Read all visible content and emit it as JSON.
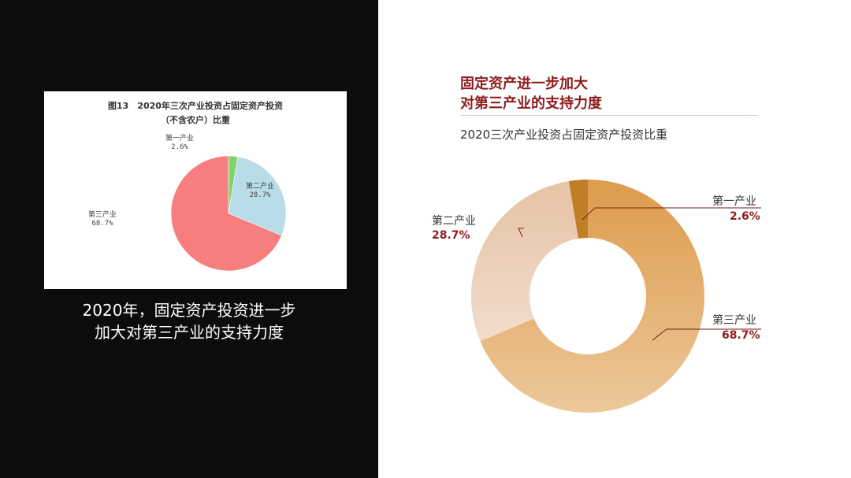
{
  "left": {
    "figure_title_line1": "图13　2020年三次产业投资占固定资产投资",
    "figure_title_line2": "（不含农户）比重",
    "caption_line1": "2020年，固定资产投资进一步",
    "caption_line2": "加大对第三产业的支持力度"
  },
  "right": {
    "title_line1": "固定资产进一步加大",
    "title_line2": "对第三产业的支持力度",
    "subtitle": "2020三次产业投资占固定资产投资比重"
  },
  "colors": {
    "left_bg": "#0c0c0c",
    "title_red": "#8e1d1d",
    "pie_primary": "#7fd36b",
    "pie_secondary": "#b9dde8",
    "pie_tertiary": "#f77e7e",
    "donut_primary": "#c07f26",
    "donut_secondary_light": "#f1dccd",
    "donut_secondary_dark": "#e6c3a4",
    "donut_tertiary_light": "#ecc89a",
    "donut_tertiary_dark": "#dd9b4b"
  },
  "chart_data": [
    {
      "type": "pie",
      "title": "图13　2020年三次产业投资占固定资产投资（不含农户）比重",
      "categories": [
        "第一产业",
        "第二产业",
        "第三产业"
      ],
      "values": [
        2.6,
        28.7,
        68.7
      ],
      "value_labels": [
        "2.6%",
        "28.7%",
        "68.7%"
      ],
      "unit": "%"
    },
    {
      "type": "pie",
      "variant": "donut",
      "title": "2020三次产业投资占固定资产投资比重",
      "categories": [
        "第一产业",
        "第二产业",
        "第三产业"
      ],
      "values": [
        2.6,
        28.7,
        68.7
      ],
      "value_labels": [
        "2.6%",
        "28.7%",
        "68.7%"
      ],
      "unit": "%"
    }
  ]
}
